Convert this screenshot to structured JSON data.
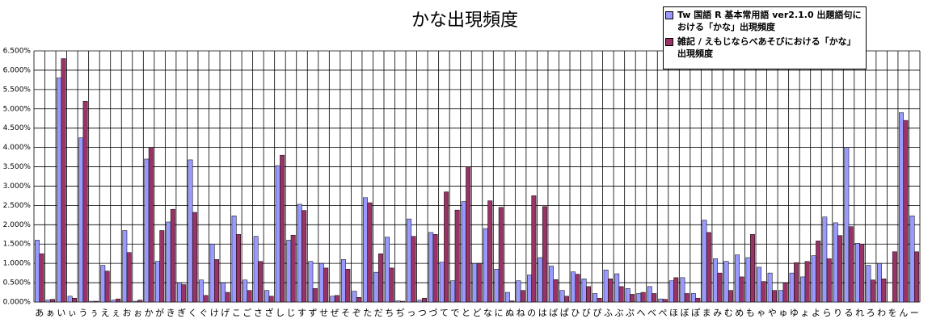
{
  "chart_data": {
    "type": "bar",
    "title": "かな出現頻度",
    "categories": [
      "あ",
      "ぁ",
      "い",
      "ぃ",
      "う",
      "ぅ",
      "え",
      "ぇ",
      "お",
      "ぉ",
      "か",
      "が",
      "き",
      "ぎ",
      "く",
      "ぐ",
      "け",
      "げ",
      "こ",
      "ご",
      "さ",
      "ざ",
      "し",
      "じ",
      "す",
      "ず",
      "せ",
      "ぜ",
      "そ",
      "ぞ",
      "た",
      "だ",
      "ち",
      "ぢ",
      "っ",
      "つ",
      "づ",
      "て",
      "で",
      "と",
      "ど",
      "な",
      "に",
      "ぬ",
      "ね",
      "の",
      "は",
      "ば",
      "ぱ",
      "ひ",
      "び",
      "ぴ",
      "ふ",
      "ぶ",
      "ぷ",
      "へ",
      "べ",
      "ぺ",
      "ほ",
      "ぼ",
      "ぽ",
      "ま",
      "み",
      "む",
      "め",
      "も",
      "ゃ",
      "や",
      "ゅ",
      "ゆ",
      "ょ",
      "よ",
      "ら",
      "り",
      "る",
      "れ",
      "ろ",
      "わ",
      "を",
      "ん",
      "ー"
    ],
    "series": [
      {
        "name": "Tw 国語 R 基本常用語 ver2.1.0 出題語句における「かな」出現頻度",
        "color": "#9999ff",
        "values": [
          1.6,
          0.05,
          5.8,
          0.15,
          4.25,
          0.02,
          0.95,
          0.05,
          1.85,
          0.02,
          3.7,
          1.05,
          2.07,
          0.5,
          3.68,
          0.57,
          1.5,
          0.5,
          2.23,
          0.57,
          1.7,
          0.3,
          3.53,
          1.6,
          2.53,
          1.05,
          1.0,
          0.15,
          1.1,
          0.28,
          2.7,
          0.77,
          1.68,
          0.03,
          2.15,
          0.05,
          1.8,
          1.03,
          0.55,
          2.6,
          1.0,
          1.9,
          0.85,
          0.25,
          0.55,
          0.7,
          1.15,
          0.93,
          0.3,
          0.78,
          0.6,
          0.22,
          0.83,
          0.73,
          0.35,
          0.22,
          0.4,
          0.08,
          0.55,
          0.63,
          0.22,
          2.12,
          1.12,
          1.05,
          1.22,
          1.15,
          0.9,
          0.75,
          0.3,
          0.75,
          0.65,
          1.2,
          2.2,
          2.05,
          4.0,
          1.52,
          0.95,
          1.0,
          0.0,
          4.9,
          2.23
        ]
      },
      {
        "name": "雑記 / えもじならべあそびにおける「かな」出現頻度",
        "color": "#993366",
        "values": [
          1.25,
          0.07,
          6.3,
          0.1,
          5.2,
          0.02,
          0.8,
          0.08,
          1.28,
          0.05,
          4.0,
          1.85,
          2.4,
          0.45,
          2.32,
          0.17,
          1.1,
          0.25,
          1.75,
          0.3,
          1.05,
          0.15,
          3.8,
          1.73,
          2.37,
          0.35,
          0.88,
          0.17,
          0.85,
          0.12,
          2.57,
          1.25,
          0.88,
          0.02,
          1.7,
          0.1,
          1.75,
          2.85,
          2.38,
          3.5,
          1.0,
          2.62,
          2.45,
          0.03,
          0.3,
          2.75,
          2.47,
          0.58,
          0.15,
          0.72,
          0.4,
          0.1,
          0.6,
          0.4,
          0.2,
          0.25,
          0.22,
          0.07,
          0.63,
          0.22,
          0.1,
          1.8,
          0.75,
          0.3,
          0.65,
          1.75,
          0.53,
          0.3,
          0.5,
          1.02,
          1.05,
          1.58,
          1.12,
          1.72,
          1.95,
          1.5,
          0.57,
          0.6,
          1.3,
          4.7,
          1.3
        ]
      }
    ],
    "ylim": [
      0,
      6.5
    ],
    "yticks": [
      {
        "value": 0,
        "label": "0.000%"
      },
      {
        "value": 0.5,
        "label": "0.500%"
      },
      {
        "value": 1,
        "label": "1.000%"
      },
      {
        "value": 1.5,
        "label": "1.500%"
      },
      {
        "value": 2,
        "label": "2.000%"
      },
      {
        "value": 2.5,
        "label": "2.500%"
      },
      {
        "value": 3,
        "label": "3.000%"
      },
      {
        "value": 3.5,
        "label": "3.500%"
      },
      {
        "value": 4,
        "label": "4.000%"
      },
      {
        "value": 4.5,
        "label": "4.500%"
      },
      {
        "value": 5,
        "label": "5.000%"
      },
      {
        "value": 5.5,
        "label": "5.500%"
      },
      {
        "value": 6,
        "label": "6.000%"
      },
      {
        "value": 6.5,
        "label": "6.500%"
      }
    ],
    "grid": true,
    "legend": "top-right"
  }
}
